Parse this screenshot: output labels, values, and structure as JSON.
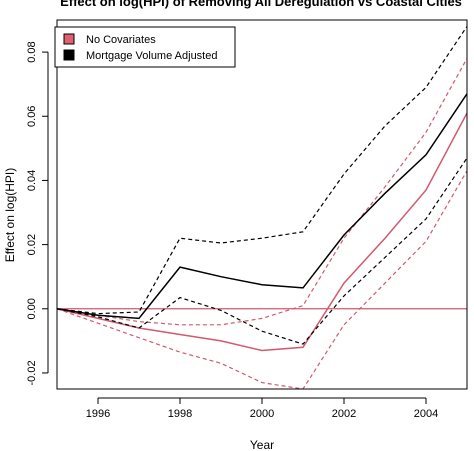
{
  "chart_data": {
    "type": "line",
    "title": "Effect on log(HPI) of Removing All Deregulation vs Coastal Cities",
    "xlabel": "Year",
    "ylabel": "Effect on log(HPI)",
    "xlim": [
      1995,
      2005
    ],
    "ylim": [
      -0.025,
      0.09
    ],
    "x_ticks": [
      1996,
      1998,
      2000,
      2002,
      2004
    ],
    "y_ticks": [
      -0.02,
      0.0,
      0.02,
      0.04,
      0.06,
      0.08
    ],
    "y_tick_labels": [
      "-0.02",
      "0.00",
      "0.02",
      "0.04",
      "0.06",
      "0.08"
    ],
    "legend_position": "top-left",
    "reference_line": {
      "y": 0.0,
      "color": "#d05a6e"
    },
    "x": [
      1995,
      1996,
      1997,
      1998,
      1999,
      2000,
      2001,
      2002,
      2003,
      2004,
      2005
    ],
    "series": [
      {
        "name": "No Covariates",
        "color": "#d05a6e",
        "legend_swatch": "#e06070",
        "values": [
          0.0,
          -0.003,
          -0.006,
          -0.008,
          -0.01,
          -0.013,
          -0.012,
          0.008,
          0.022,
          0.037,
          0.061
        ],
        "lower": [
          0.0,
          -0.0045,
          -0.009,
          -0.0135,
          -0.017,
          -0.023,
          -0.025,
          -0.005,
          0.008,
          0.021,
          0.043
        ],
        "upper": [
          0.0,
          -0.002,
          -0.004,
          -0.005,
          -0.005,
          -0.003,
          0.001,
          0.022,
          0.038,
          0.055,
          0.078
        ]
      },
      {
        "name": "Mortgage Volume Adjusted",
        "color": "#000000",
        "legend_swatch": "#000000",
        "values": [
          0.0,
          -0.002,
          -0.003,
          0.013,
          0.01,
          0.0075,
          0.0065,
          0.023,
          0.036,
          0.048,
          0.067
        ],
        "lower": [
          0.0,
          -0.0025,
          -0.006,
          0.0035,
          -0.0005,
          -0.007,
          -0.011,
          0.004,
          0.016,
          0.028,
          0.047
        ],
        "upper": [
          0.0,
          -0.0015,
          -0.001,
          0.022,
          0.0205,
          0.022,
          0.024,
          0.042,
          0.057,
          0.069,
          0.088
        ]
      }
    ]
  }
}
